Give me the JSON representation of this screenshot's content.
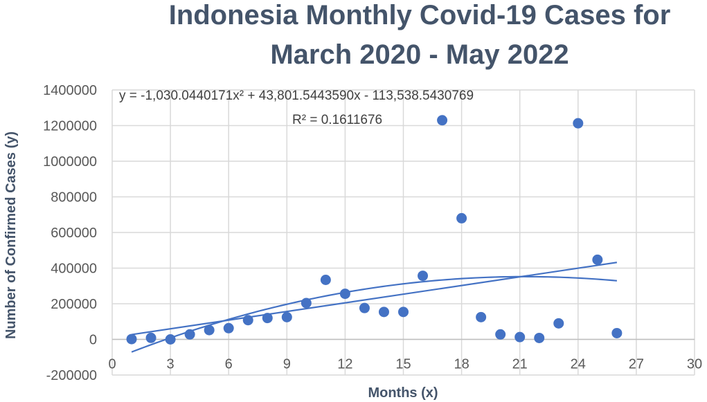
{
  "chart_data": {
    "type": "scatter",
    "title_line1": "Indonesia Monthly Covid-19 Cases for",
    "title_line2": "March 2020 - May 2022",
    "xlabel": "Months (x)",
    "ylabel": "Number of Confirmed Cases (y)",
    "xlim": [
      0,
      30
    ],
    "ylim": [
      -200000,
      1400000
    ],
    "x_ticks": [
      0,
      3,
      6,
      9,
      12,
      15,
      18,
      21,
      24,
      27,
      30
    ],
    "y_ticks": [
      -200000,
      0,
      200000,
      400000,
      600000,
      800000,
      1000000,
      1200000,
      1400000
    ],
    "x_tick_labels": [
      "0",
      "3",
      "6",
      "9",
      "12",
      "15",
      "18",
      "21",
      "24",
      "27",
      "30"
    ],
    "y_tick_labels": [
      "-200000",
      "0",
      "200000",
      "400000",
      "600000",
      "800000",
      "1000000",
      "1200000",
      "1400000"
    ],
    "grid": true,
    "colors": {
      "points": "#4472c4",
      "trend": "#4472c4",
      "grid": "#d9d9d9",
      "title": "#44546a"
    },
    "points": [
      {
        "x": 1,
        "y": 1500
      },
      {
        "x": 2,
        "y": 8500
      },
      {
        "x": 3,
        "y": 0
      },
      {
        "x": 4,
        "y": 28000
      },
      {
        "x": 5,
        "y": 52000
      },
      {
        "x": 6,
        "y": 63000
      },
      {
        "x": 7,
        "y": 108000
      },
      {
        "x": 8,
        "y": 120000
      },
      {
        "x": 9,
        "y": 125000
      },
      {
        "x": 10,
        "y": 204000
      },
      {
        "x": 11,
        "y": 334000
      },
      {
        "x": 12,
        "y": 256000
      },
      {
        "x": 13,
        "y": 176000
      },
      {
        "x": 14,
        "y": 154000
      },
      {
        "x": 15,
        "y": 154000
      },
      {
        "x": 16,
        "y": 357000
      },
      {
        "x": 17,
        "y": 1230000
      },
      {
        "x": 18,
        "y": 680000
      },
      {
        "x": 19,
        "y": 125000
      },
      {
        "x": 20,
        "y": 28000
      },
      {
        "x": 21,
        "y": 13000
      },
      {
        "x": 22,
        "y": 8000
      },
      {
        "x": 23,
        "y": 90000
      },
      {
        "x": 24,
        "y": 1213000
      },
      {
        "x": 25,
        "y": 447000
      },
      {
        "x": 26,
        "y": 35000
      }
    ],
    "trendlines": [
      {
        "kind": "linear",
        "x_range": [
          1,
          26
        ],
        "endpoints": [
          {
            "x": 1,
            "y": 27000
          },
          {
            "x": 26,
            "y": 432000
          }
        ]
      },
      {
        "kind": "polynomial",
        "x_range": [
          1,
          26
        ],
        "coefficients": {
          "a2": -1030.0440171,
          "a1": 43801.544359,
          "a0": -113538.5430769
        }
      }
    ],
    "annotations": {
      "equation": "y = -1,030.0440171x² + 43,801.5443590x - 113,538.5430769",
      "r_squared": "R² = 0.1611676"
    }
  }
}
